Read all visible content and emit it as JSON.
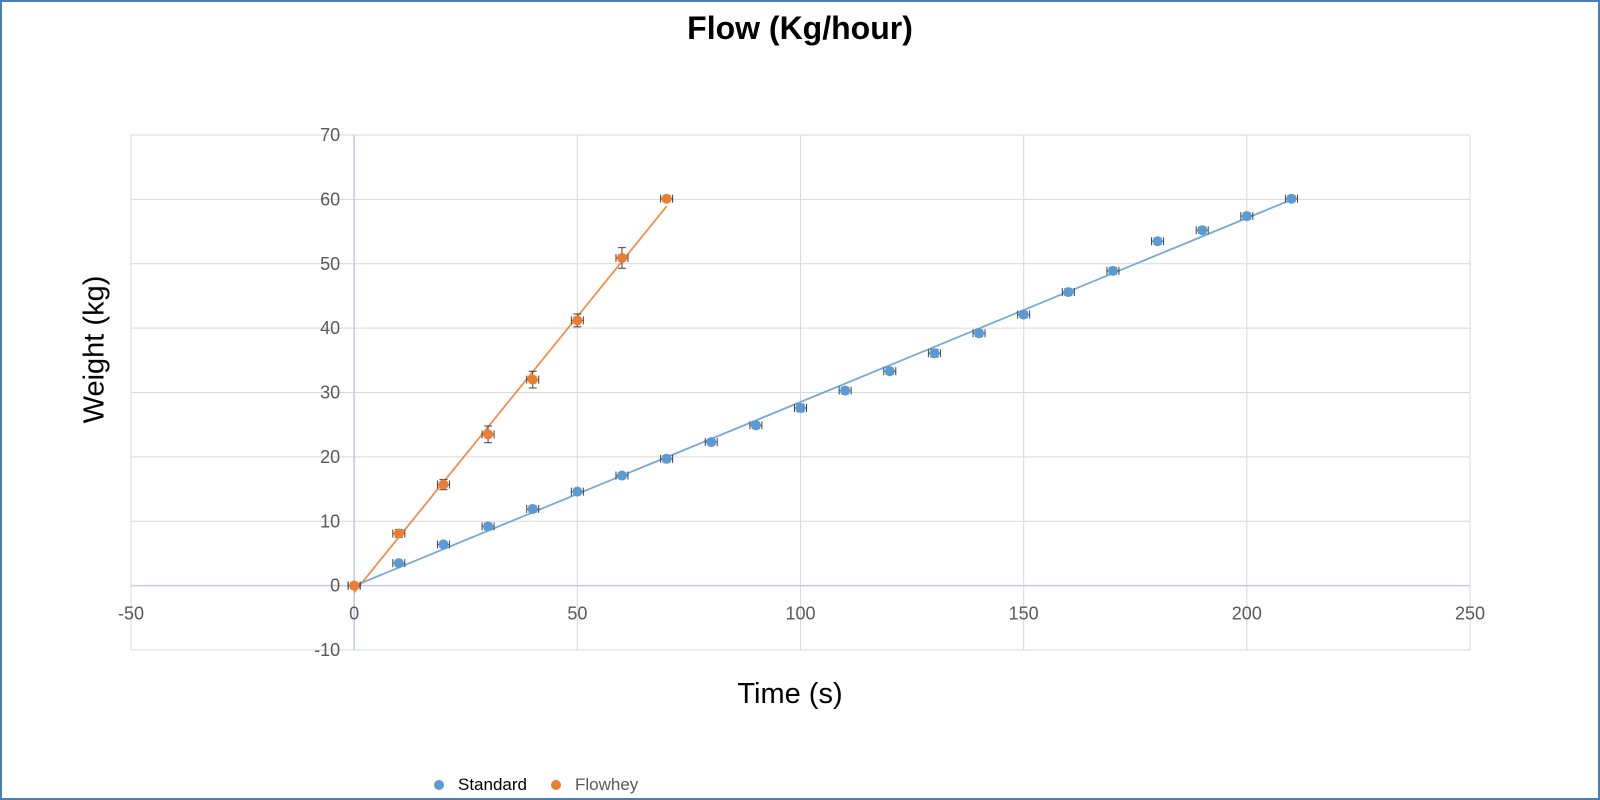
{
  "chart_data": {
    "type": "scatter",
    "title": "Flow (Kg/hour)",
    "xlabel": "Time (s)",
    "ylabel": "Weight (kg)",
    "xlim": [
      -50,
      250
    ],
    "ylim": [
      -10,
      70
    ],
    "x_ticks": [
      -50,
      0,
      50,
      100,
      150,
      200,
      250
    ],
    "y_ticks": [
      -10,
      0,
      10,
      20,
      30,
      40,
      50,
      60,
      70
    ],
    "x_tick_labels": [
      "-50",
      "0",
      "50",
      "100",
      "150",
      "200",
      "250"
    ],
    "y_tick_labels": [
      "-10",
      "0",
      "10",
      "20",
      "30",
      "40",
      "50",
      "60",
      "70"
    ],
    "grid": true,
    "legend_position": "bottom",
    "series": [
      {
        "name": "Standard",
        "color": "#5b9bd5",
        "trendline": "linear",
        "x": [
          0,
          10,
          20,
          30,
          40,
          50,
          60,
          70,
          80,
          90,
          100,
          110,
          120,
          130,
          140,
          150,
          160,
          170,
          180,
          190,
          200,
          210
        ],
        "y": [
          0,
          3.5,
          6.4,
          9.2,
          11.9,
          14.6,
          17.1,
          19.7,
          22.3,
          24.9,
          27.6,
          30.3,
          33.3,
          36.1,
          39.2,
          42.1,
          45.6,
          48.9,
          53.5,
          55.2,
          57.4,
          60.1
        ],
        "error": [
          0.4,
          0.4,
          0.4,
          0.5,
          0.5,
          0.4,
          0.4,
          0.5,
          0.4,
          0.5,
          0.6,
          0.5,
          0.5,
          0.6,
          0.5,
          0.5,
          0.5,
          0.5,
          0.5,
          0.5,
          0.5,
          0.5
        ]
      },
      {
        "name": "Flowhey",
        "color": "#ed7d31",
        "trendline": "linear",
        "x": [
          0,
          10,
          20,
          30,
          40,
          50,
          60,
          70
        ],
        "y": [
          0,
          8.1,
          15.7,
          23.5,
          32.0,
          41.2,
          50.9,
          60.1
        ],
        "error": [
          0.4,
          0.6,
          0.8,
          1.3,
          1.3,
          1.0,
          1.6,
          0.4
        ]
      }
    ]
  }
}
